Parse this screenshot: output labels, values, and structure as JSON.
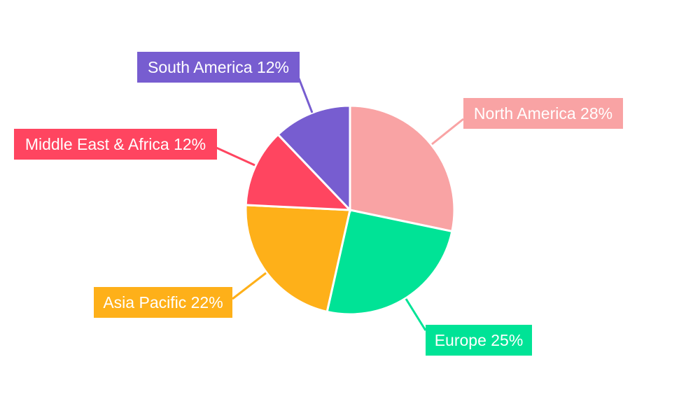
{
  "chart_data": {
    "type": "pie",
    "title": "",
    "categories": [
      "North America",
      "Europe",
      "Asia Pacific",
      "Middle East & Africa",
      "South America"
    ],
    "values": [
      28,
      25,
      22,
      12,
      12
    ],
    "unit": "%",
    "labels": [
      "North America 28%",
      "Europe 25%",
      "Asia Pacific 22%",
      "Middle East & Africa 12%",
      "South America 12%"
    ],
    "colors": [
      "#F9A3A4",
      "#00E396",
      "#FEB019",
      "#FF4560",
      "#775DD0"
    ],
    "start_angle": "top",
    "direction": "clockwise",
    "legend": "none"
  }
}
